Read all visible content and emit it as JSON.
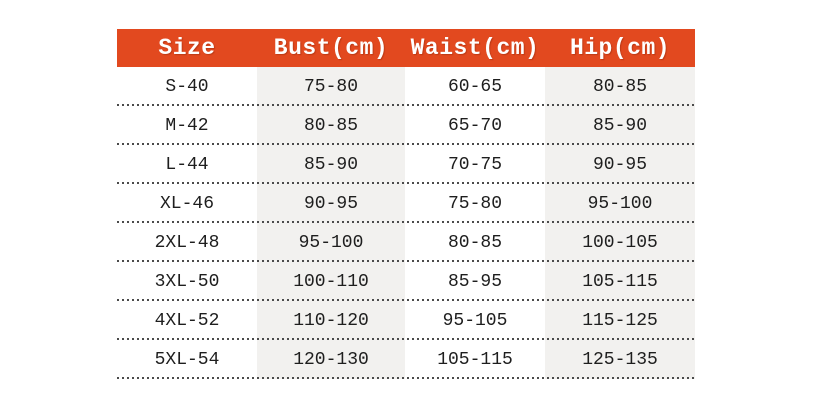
{
  "table": {
    "title": "size-chart",
    "columns": [
      {
        "label": "Size"
      },
      {
        "label": "Bust(cm)"
      },
      {
        "label": "Waist(cm)"
      },
      {
        "label": "Hip(cm)"
      }
    ],
    "rows": [
      {
        "size": "S-40",
        "bust": "75-80",
        "waist": "60-65",
        "hip": "80-85"
      },
      {
        "size": "M-42",
        "bust": "80-85",
        "waist": "65-70",
        "hip": "85-90"
      },
      {
        "size": "L-44",
        "bust": "85-90",
        "waist": "70-75",
        "hip": "90-95"
      },
      {
        "size": "XL-46",
        "bust": "90-95",
        "waist": "75-80",
        "hip": "95-100"
      },
      {
        "size": "2XL-48",
        "bust": "95-100",
        "waist": "80-85",
        "hip": "100-105"
      },
      {
        "size": "3XL-50",
        "bust": "100-110",
        "waist": "85-95",
        "hip": "105-115"
      },
      {
        "size": "4XL-52",
        "bust": "110-120",
        "waist": "95-105",
        "hip": "115-125"
      },
      {
        "size": "5XL-54",
        "bust": "120-130",
        "waist": "105-115",
        "hip": "125-135"
      }
    ]
  },
  "colors": {
    "header_bg": "#e2491f",
    "header_text": "#ffffff",
    "column_band": "#f2f1ef",
    "body_text": "#1e1e1e",
    "dotted_divider": "#4a4a4a",
    "page_bg": "#ffffff"
  }
}
